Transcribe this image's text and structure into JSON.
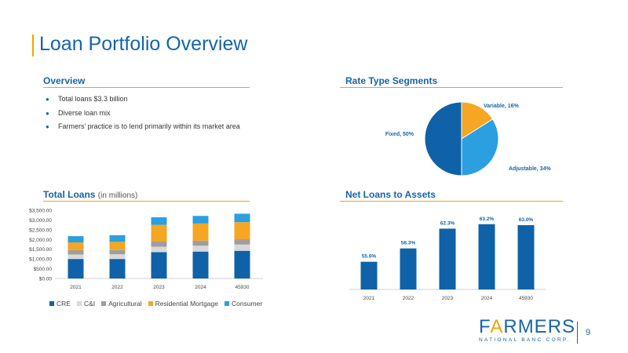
{
  "page": {
    "title": "Loan Portfolio Overview",
    "number": "9"
  },
  "overview": {
    "heading": "Overview",
    "bullets": [
      "Total loans $3.3 billion",
      "Diverse loan mix",
      "Farmers’ practice is to lend primarily within its market area"
    ]
  },
  "rate_segments": {
    "heading": "Rate Type Segments"
  },
  "total_loans": {
    "heading": "Total Loans",
    "subheading": "(in millions)"
  },
  "net_loans": {
    "heading": "Net Loans to Assets"
  },
  "logo": {
    "word_pre": "F",
    "word_accent": "A",
    "word_post": "RMERS",
    "subline": "NATIONAL BANC CORP."
  },
  "colors": {
    "brand_blue": "#1565a8",
    "accent_orange": "#f0a500",
    "cre": "#0f62a8",
    "ci": "#d9d9d9",
    "agricultural": "#9e9e9e",
    "residential": "#f5a623",
    "consumer": "#2b9fe0"
  },
  "chart_data": [
    {
      "id": "rate-type",
      "type": "pie",
      "title": "Rate Type Segments",
      "slices": [
        {
          "label": "Variable, 16%",
          "value": 16,
          "color": "#f5a623"
        },
        {
          "label": "Adjustable, 34%",
          "value": 34,
          "color": "#2b9fe0"
        },
        {
          "label": "Fixed, 50%",
          "value": 50,
          "color": "#0f62a8"
        }
      ]
    },
    {
      "id": "total-loans",
      "type": "bar",
      "stacked": true,
      "title": "Total Loans (in millions)",
      "categories": [
        "2021",
        "2022",
        "2023",
        "2024",
        "45930"
      ],
      "ylim": [
        0,
        3500
      ],
      "yticks": [
        "$0.00",
        "$500.00",
        "$1,000.00",
        "$1,500.00",
        "$2,000.00",
        "$2,500.00",
        "$3,000.00",
        "$3,500.00"
      ],
      "series": [
        {
          "name": "CRE",
          "color": "#0f62a8",
          "values": [
            1000,
            1000,
            1350,
            1380,
            1420
          ]
        },
        {
          "name": "C&I",
          "color": "#d9d9d9",
          "values": [
            230,
            240,
            280,
            300,
            320
          ]
        },
        {
          "name": "Agricultural",
          "color": "#9e9e9e",
          "values": [
            220,
            220,
            260,
            260,
            270
          ]
        },
        {
          "name": "Residential Mortgage",
          "color": "#f5a623",
          "values": [
            400,
            420,
            860,
            880,
            880
          ]
        },
        {
          "name": "Consumer",
          "color": "#2b9fe0",
          "values": [
            320,
            340,
            390,
            390,
            430
          ]
        }
      ]
    },
    {
      "id": "net-loans-assets",
      "type": "bar",
      "title": "Net Loans to Assets",
      "categories": [
        "2021",
        "2022",
        "2023",
        "2024",
        "45930"
      ],
      "values": [
        55.6,
        58.3,
        62.3,
        63.2,
        63.0
      ],
      "labels": [
        "55.6%",
        "58.3%",
        "62.3%",
        "63.2%",
        "63.0%"
      ],
      "ylim": [
        50,
        63.8
      ],
      "color": "#0f62a8"
    }
  ]
}
